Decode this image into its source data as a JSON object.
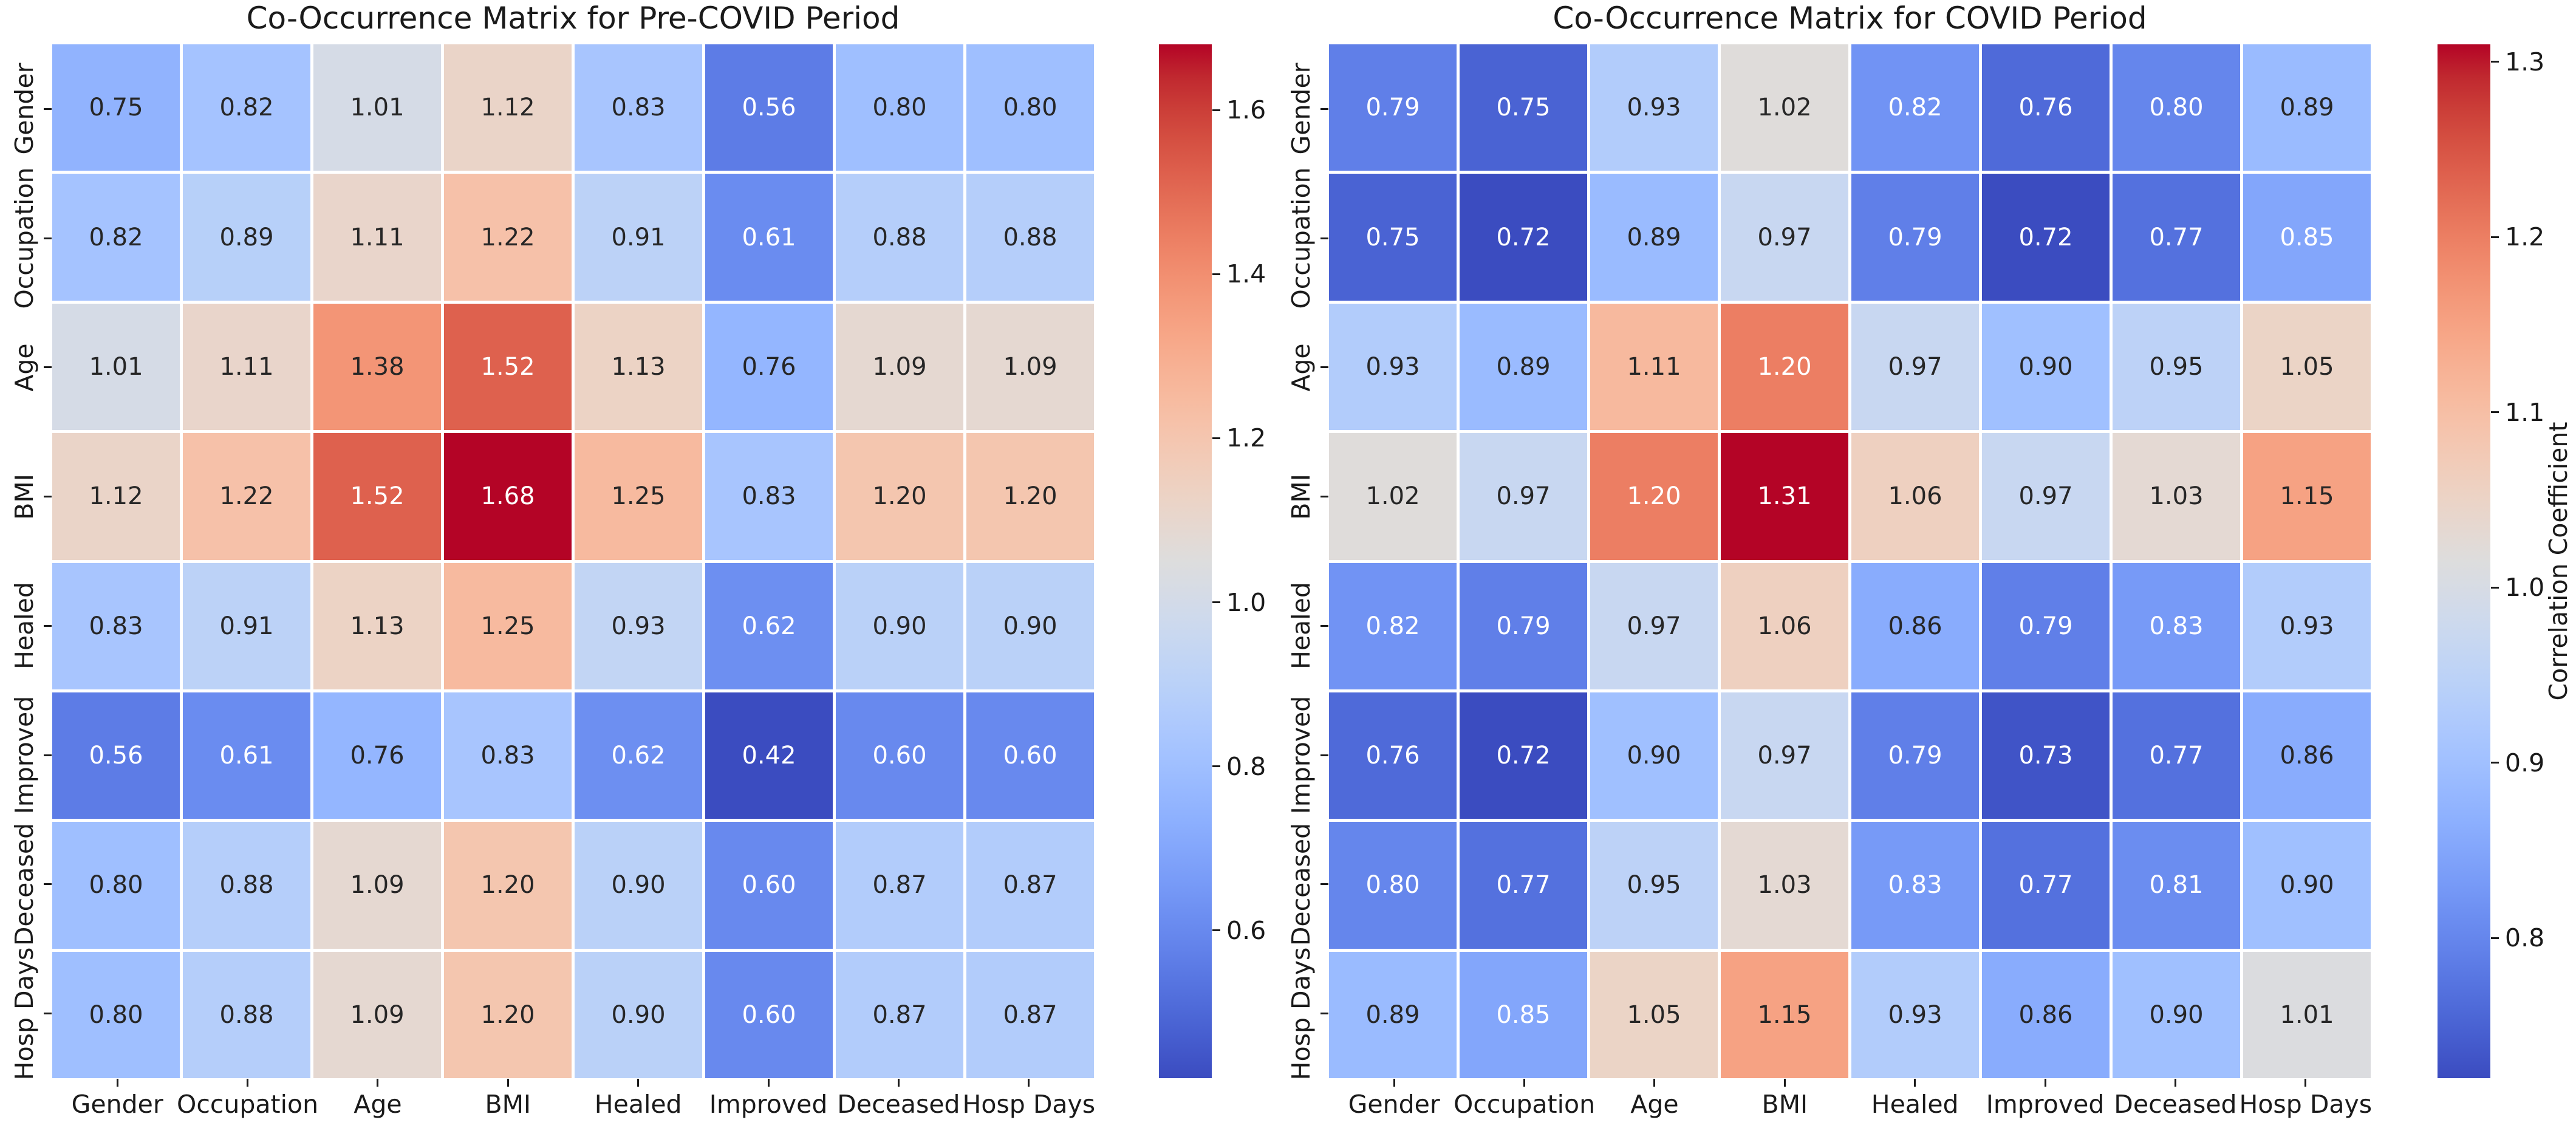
{
  "figure": {
    "background": "#ffffff",
    "annot_dark_color": "#262626",
    "annot_light_color": "#ffffff"
  },
  "chart_data": [
    {
      "type": "heatmap",
      "title": "Co-Occurrence Matrix for Pre-COVID Period",
      "x_labels": [
        "Gender",
        "Occupation",
        "Age",
        "BMI",
        "Healed",
        "Improved",
        "Deceased",
        "Hosp Days"
      ],
      "y_labels": [
        "Gender",
        "Occupation",
        "Age",
        "BMI",
        "Healed",
        "Improved",
        "Deceased",
        "Hosp Days"
      ],
      "values": [
        [
          0.75,
          0.82,
          1.01,
          1.12,
          0.83,
          0.56,
          0.8,
          0.8
        ],
        [
          0.82,
          0.89,
          1.11,
          1.22,
          0.91,
          0.61,
          0.88,
          0.88
        ],
        [
          1.01,
          1.11,
          1.38,
          1.52,
          1.13,
          0.76,
          1.09,
          1.09
        ],
        [
          1.12,
          1.22,
          1.52,
          1.68,
          1.25,
          0.83,
          1.2,
          1.2
        ],
        [
          0.83,
          0.91,
          1.13,
          1.25,
          0.93,
          0.62,
          0.9,
          0.9
        ],
        [
          0.56,
          0.61,
          0.76,
          0.83,
          0.62,
          0.42,
          0.6,
          0.6
        ],
        [
          0.8,
          0.88,
          1.09,
          1.2,
          0.9,
          0.6,
          0.87,
          0.87
        ],
        [
          0.8,
          0.88,
          1.09,
          1.2,
          0.9,
          0.6,
          0.87,
          0.87
        ]
      ],
      "vmin": 0.42,
      "vmax": 1.68,
      "colormap": "coolwarm",
      "annot_decimals": 2,
      "grid_lines": "white",
      "colorbar_ticks": [
        "1.6",
        "1.4",
        "1.2",
        "1.0",
        "0.8",
        "0.6"
      ],
      "colorbar_label": ""
    },
    {
      "type": "heatmap",
      "title": "Co-Occurrence Matrix for COVID Period",
      "x_labels": [
        "Gender",
        "Occupation",
        "Age",
        "BMI",
        "Healed",
        "Improved",
        "Deceased",
        "Hosp Days"
      ],
      "y_labels": [
        "Gender",
        "Occupation",
        "Age",
        "BMI",
        "Healed",
        "Improved",
        "Deceased",
        "Hosp Days"
      ],
      "values": [
        [
          0.79,
          0.75,
          0.93,
          1.02,
          0.82,
          0.76,
          0.8,
          0.89
        ],
        [
          0.75,
          0.72,
          0.89,
          0.97,
          0.79,
          0.72,
          0.77,
          0.85
        ],
        [
          0.93,
          0.89,
          1.11,
          1.2,
          0.97,
          0.9,
          0.95,
          1.05
        ],
        [
          1.02,
          0.97,
          1.2,
          1.31,
          1.06,
          0.97,
          1.03,
          1.15
        ],
        [
          0.82,
          0.79,
          0.97,
          1.06,
          0.86,
          0.79,
          0.83,
          0.93
        ],
        [
          0.76,
          0.72,
          0.9,
          0.97,
          0.79,
          0.73,
          0.77,
          0.86
        ],
        [
          0.8,
          0.77,
          0.95,
          1.03,
          0.83,
          0.77,
          0.81,
          0.9
        ],
        [
          0.89,
          0.85,
          1.05,
          1.15,
          0.93,
          0.86,
          0.9,
          1.01
        ]
      ],
      "vmin": 0.72,
      "vmax": 1.31,
      "colormap": "coolwarm",
      "annot_decimals": 2,
      "grid_lines": "white",
      "colorbar_ticks": [
        "1.3",
        "1.2",
        "1.1",
        "1.0",
        "0.9",
        "0.8"
      ],
      "colorbar_label": "Correlation Coefficient"
    }
  ]
}
